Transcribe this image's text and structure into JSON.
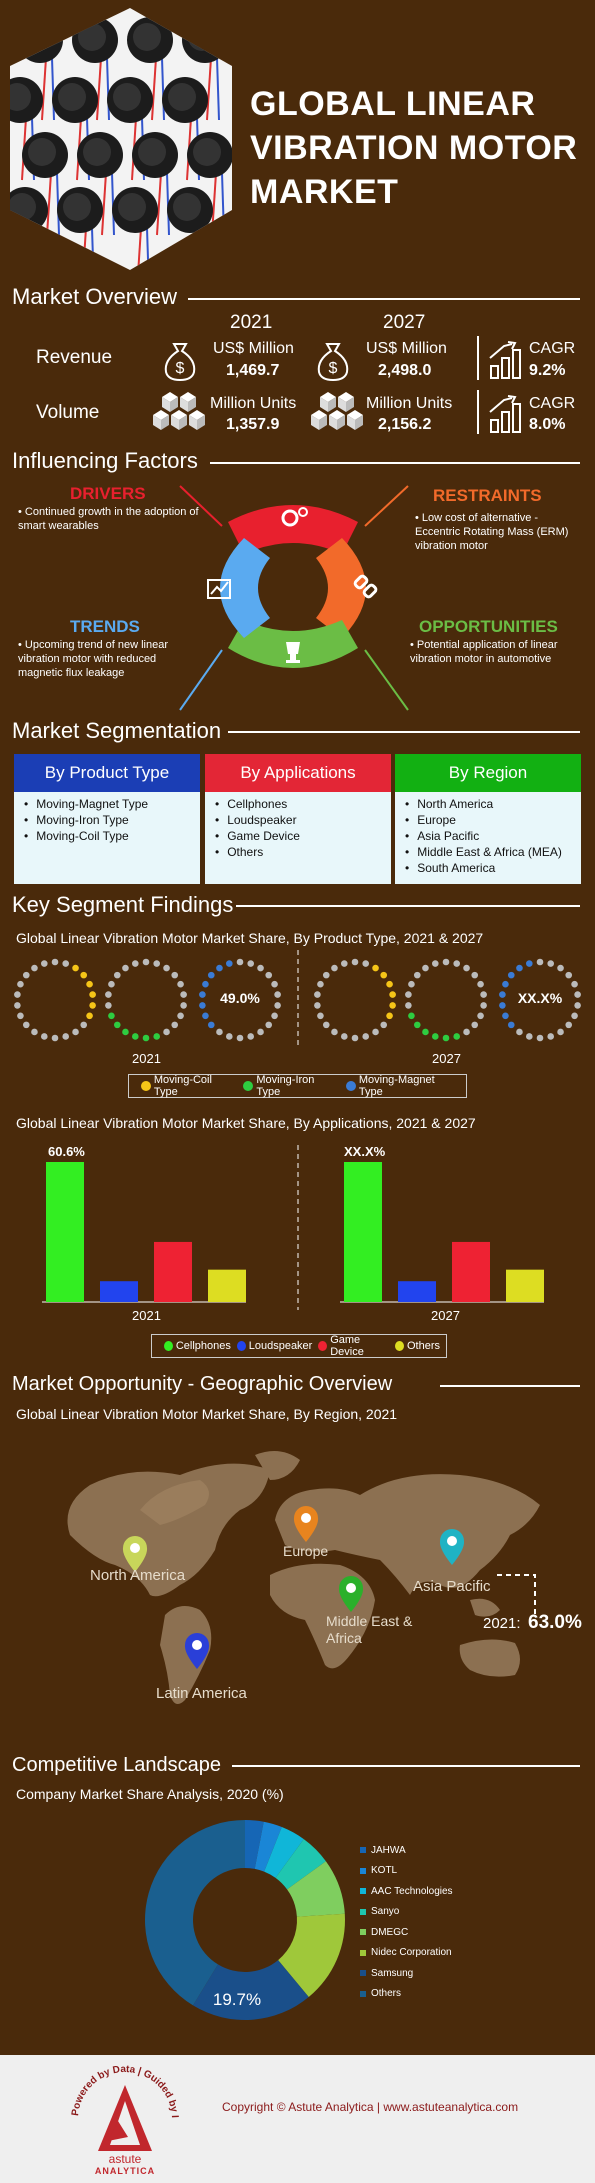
{
  "title": [
    "GLOBAL LINEAR",
    "VIBRATION MOTOR",
    "MARKET"
  ],
  "overview": {
    "heading": "Market Overview",
    "year1": "2021",
    "year2": "2027",
    "revenue_label": "Revenue",
    "volume_label": "Volume",
    "revenue_unit": "US$ Million",
    "volume_unit": "Million Units",
    "revenue_2021": "1,469.7",
    "revenue_2027": "2,498.0",
    "volume_2021": "1,357.9",
    "volume_2027": "2,156.2",
    "cagr_label": "CAGR",
    "revenue_cagr": "9.2%",
    "volume_cagr": "8.0%"
  },
  "factors": {
    "heading": "Influencing Factors",
    "drivers": {
      "title": "DRIVERS",
      "text": "Continued growth in the adoption of smart wearables",
      "color": "#e8202e"
    },
    "restraints": {
      "title": "RESTRAINTS",
      "text": "Low cost of alternative - Eccentric Rotating Mass (ERM) vibration motor",
      "color": "#f26a2a"
    },
    "trends": {
      "title": "TRENDS",
      "text": "Upcoming trend of new linear vibration motor with reduced magnetic flux leakage",
      "color": "#5aaaf0"
    },
    "opportunities": {
      "title": "OPPORTUNITIES",
      "text": "Potential application of linear vibration motor in automotive",
      "color": "#6bbd45"
    }
  },
  "segmentation": {
    "heading": "Market Segmentation",
    "product": {
      "title": "By Product Type",
      "color": "#1b3eb5",
      "items": [
        "Moving-Magnet Type",
        "Moving-Iron Type",
        "Moving-Coil Type"
      ]
    },
    "applications": {
      "title": "By Applications",
      "color": "#e32636",
      "items": [
        "Cellphones",
        "Loudspeaker",
        "Game Device",
        "Others"
      ]
    },
    "region": {
      "title": "By Region",
      "color": "#12b012",
      "items": [
        "North America",
        "Europe",
        "Asia Pacific",
        "Middle East & Africa (MEA)",
        "South America"
      ]
    }
  },
  "findings": {
    "heading": "Key Segment Findings",
    "donut_title": "Global Linear Vibration Motor Market Share, By Product Type, 2021 & 2027",
    "donut_value_2021": "49.0%",
    "donut_value_2027": "XX.X%",
    "year1": "2021",
    "year2": "2027",
    "donut_legend": [
      {
        "label": "Moving-Coil Type",
        "color": "#f5c518"
      },
      {
        "label": "Moving-Iron Type",
        "color": "#2ecc40"
      },
      {
        "label": "Moving-Magnet Type",
        "color": "#3a7bd5"
      }
    ],
    "bar_title": "Global Linear Vibration Motor Market Share, By Applications, 2021 & 2027",
    "bar_label_2021": "60.6%",
    "bar_label_2027": "XX.X%",
    "bar_legend": [
      {
        "label": "Cellphones",
        "color": "#33ee22"
      },
      {
        "label": "Loudspeaker",
        "color": "#2244ee"
      },
      {
        "label": "Game Device",
        "color": "#ee2233"
      },
      {
        "label": "Others",
        "color": "#dddd22"
      }
    ]
  },
  "geo": {
    "heading": "Market Opportunity - Geographic Overview",
    "subtitle": "Global Linear Vibration Motor Market Share, By Region, 2021",
    "regions": [
      {
        "label": "North America",
        "color": "#c8d65a"
      },
      {
        "label": "Europe",
        "color": "#e8841e"
      },
      {
        "label": "Middle East & Africa",
        "color": "#2bb02b"
      },
      {
        "label": "Asia Pacific",
        "color": "#1fb3c4"
      },
      {
        "label": "Latin America",
        "color": "#2a3fd8"
      }
    ],
    "callout_year": "2021:",
    "callout_value": "63.0%"
  },
  "competitive": {
    "heading": "Competitive Landscape",
    "subtitle": "Company Market Share Analysis, 2020 (%)",
    "center_label": "19.7%"
  },
  "footer": {
    "copyright": "Copyright © Astute Analytica  |  www.astuteanalytica.com",
    "logo_ring": "Powered by Data | Guided by Intelligence",
    "logo_name": "astute",
    "logo_sub": "ANALYTICA"
  },
  "chart_data": [
    {
      "type": "pie",
      "title": "Global Linear Vibration Motor Market Share, By Product Type, 2021 & 2027",
      "categories": [
        "Moving-Coil Type",
        "Moving-Iron Type",
        "Moving-Magnet Type"
      ],
      "series": [
        {
          "name": "2021",
          "values": [
            null,
            null,
            49.0
          ]
        }
      ],
      "legend": "bottom"
    },
    {
      "type": "bar",
      "title": "Global Linear Vibration Motor Market Share, By Applications, 2021 & 2027",
      "categories": [
        "Cellphones",
        "Loudspeaker",
        "Game Device",
        "Others"
      ],
      "series": [
        {
          "name": "2021",
          "values": [
            60.6,
            9,
            26,
            14
          ]
        },
        {
          "name": "2027",
          "values": [
            60.6,
            9,
            26,
            14
          ]
        }
      ],
      "colors": [
        "#33ee22",
        "#2244ee",
        "#ee2233",
        "#dddd22"
      ],
      "legend": "bottom"
    },
    {
      "type": "pie",
      "title": "Company Market Share Analysis, 2020 (%)",
      "categories": [
        "JAHWA",
        "KOTL",
        "AAC Technologies",
        "Sanyo",
        "DMEGC",
        "Nidec Corporation",
        "Samsung",
        "Others"
      ],
      "values": [
        3,
        3,
        4,
        5,
        9,
        15,
        19.7,
        41.3
      ],
      "colors": [
        "#1666b5",
        "#1a86d6",
        "#10b6d8",
        "#1fc6b0",
        "#7fce5f",
        "#9fc83a",
        "#1a4f8a",
        "#1a5f8f"
      ],
      "legend": "right"
    }
  ]
}
